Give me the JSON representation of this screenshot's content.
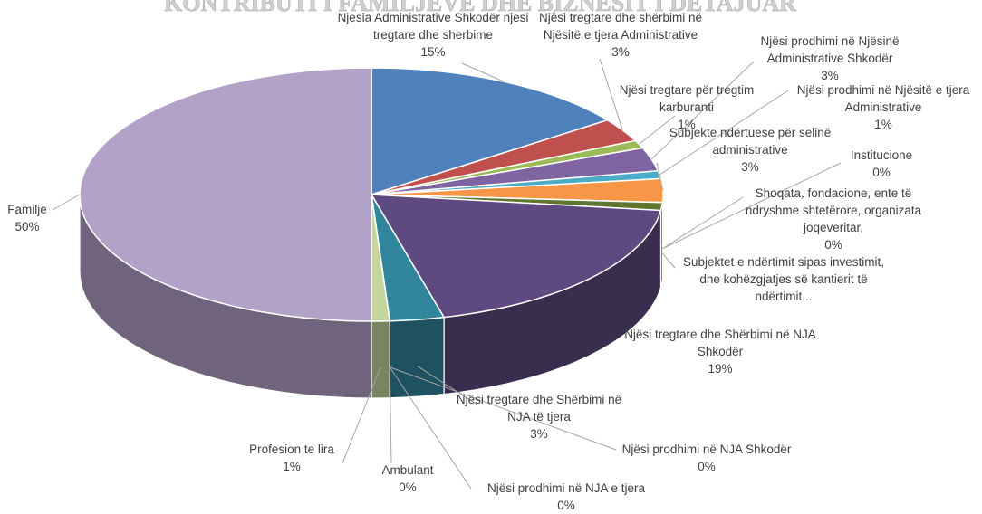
{
  "chart_data": {
    "type": "pie3d",
    "title": "KONTRIBUTI I FAMILJEVE DHE BIZNESIT I DETAJUAR",
    "labels": [
      "Njesia Administrative Shkodër njesi tregtare dhe sherbime",
      "Njësi tregtare dhe shërbimi në Njësitë e tjera Administrative",
      "Njësi tregtare për tregtim karburanti",
      "Njësi prodhimi në Njësinë Administrative Shkodër",
      "Njësi prodhimi në Njësitë e tjera Administrative",
      "Subjekte ndërtuese për selinë administrative",
      "Institucione",
      "Shoqata, fondacione, ente të ndryshme shtetërore, organizata joqeveritar,",
      "Subjektet e ndërtimit  sipas investimit, dhe kohëzgjatjes së kantierit të ndërtimit...",
      "Njësi tregtare dhe Shërbimi në NJA Shkodër",
      "Njësi tregtare dhe Shërbimi në NJA të tjera",
      "Njësi prodhimi në NJA Shkodër",
      "Njësi prodhimi në NJA e tjera",
      "Ambulant",
      "Profesion te lira",
      "Familje"
    ],
    "values": [
      15,
      3,
      1,
      3,
      1,
      3,
      0,
      0,
      1,
      19,
      3,
      0,
      0,
      0,
      1,
      50
    ],
    "value_labels": [
      "15%",
      "3%",
      "1%",
      "3%",
      "1%",
      "3%",
      "0%",
      "0%",
      null,
      "19%",
      "3%",
      "0%",
      "0%",
      "0%",
      "1%",
      "50%"
    ],
    "colors": [
      "#4f81bd",
      "#c0504d",
      "#9bbb59",
      "#8064a2",
      "#4bacc6",
      "#f79646",
      "#2c4d75",
      "#772c2a",
      "#5f7530",
      "#5e4a80",
      "#31859c",
      "#e46c0a",
      "#7f4c1f",
      "#d99694",
      "#c3d69b",
      "#b3a2c7"
    ]
  }
}
